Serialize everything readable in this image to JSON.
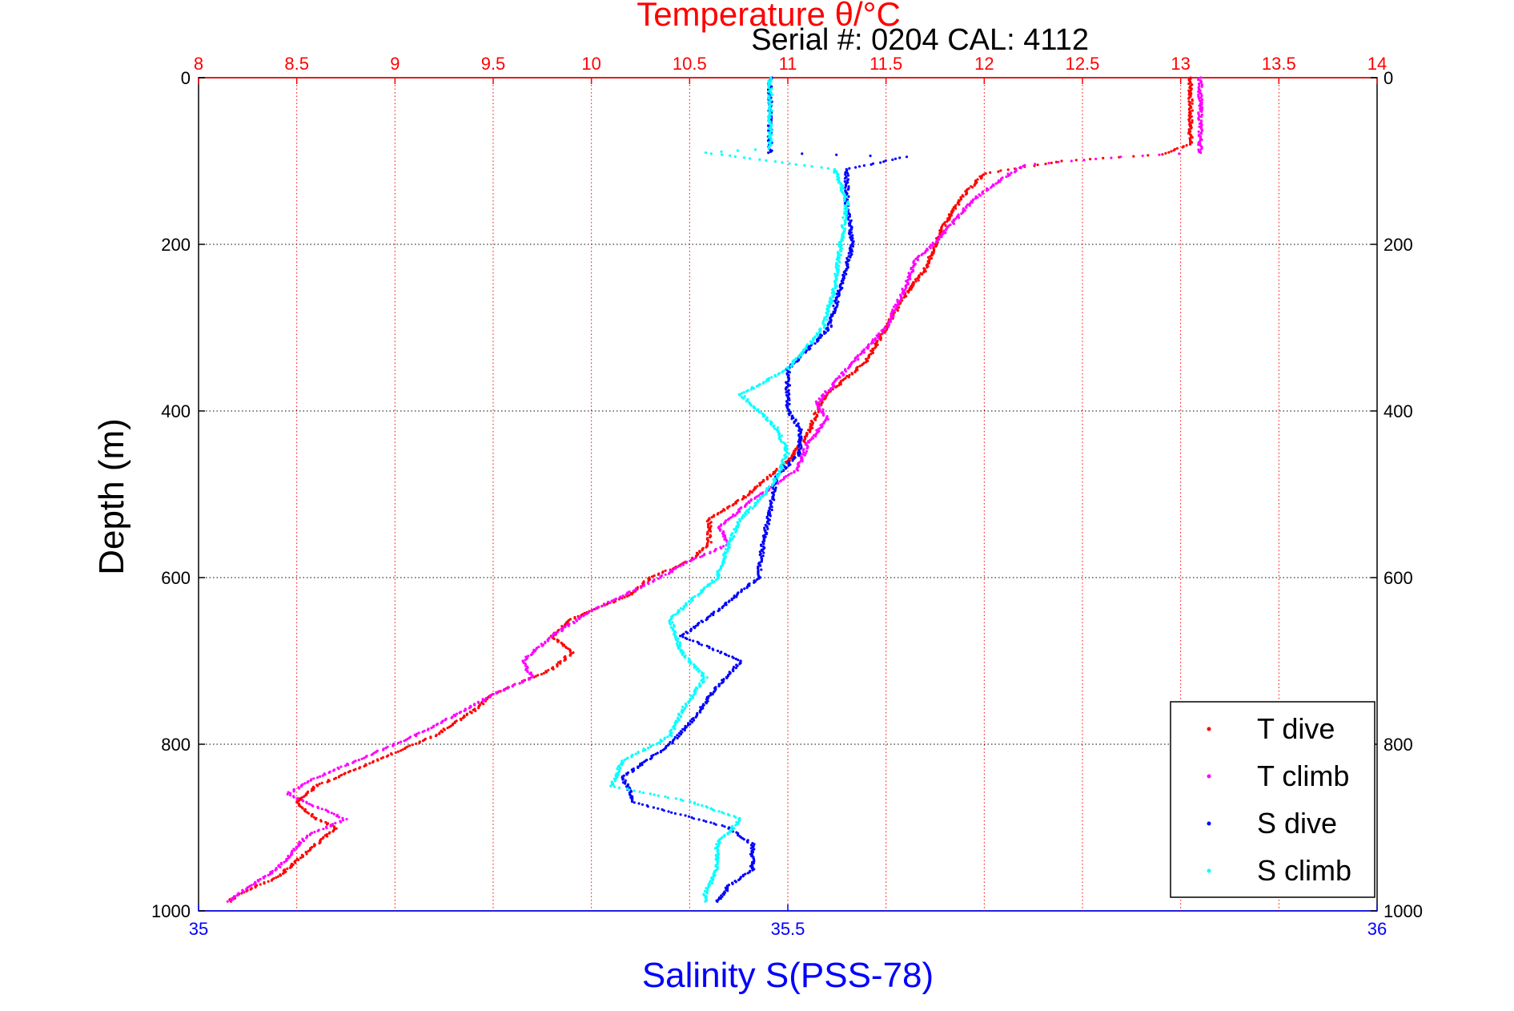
{
  "chart_data": {
    "type": "scatter",
    "title": "Temperature θ/°C",
    "subtitle": "Serial #: 0204  CAL: 4112",
    "xlabel_top": "Temperature θ/°C",
    "xlabel": "Salinity S(PSS-78)",
    "ylabel": "Depth (m)",
    "x_top_ticks": [
      "8",
      "8.5",
      "9",
      "9.5",
      "10",
      "10.5",
      "11",
      "11.5",
      "12",
      "12.5",
      "13",
      "13.5",
      "14"
    ],
    "x_bottom_ticks": [
      "35",
      "35.5",
      "36"
    ],
    "y_ticks": [
      "0",
      "200",
      "400",
      "600",
      "800",
      "1000"
    ],
    "xlim_top": [
      8,
      14
    ],
    "xlim_bottom": [
      35,
      36
    ],
    "ylim": [
      0,
      1000
    ],
    "y_reversed": true,
    "grid": true,
    "legend_position": "bottom-right",
    "colors": {
      "t_dive": "#ff0000",
      "t_climb": "#ff00ff",
      "s_dive": "#0000ff",
      "s_climb": "#00ffff",
      "top_axis": "#ff0000",
      "bottom_axis": "#0000ff"
    },
    "series": [
      {
        "name": "T dive",
        "axis": "top",
        "color": "#ff0000",
        "points": [
          [
            13.05,
            0
          ],
          [
            13.05,
            80
          ],
          [
            12.9,
            92
          ],
          [
            12.4,
            100
          ],
          [
            12.0,
            115
          ],
          [
            11.9,
            140
          ],
          [
            11.8,
            175
          ],
          [
            11.75,
            200
          ],
          [
            11.7,
            230
          ],
          [
            11.6,
            260
          ],
          [
            11.5,
            300
          ],
          [
            11.4,
            340
          ],
          [
            11.2,
            380
          ],
          [
            11.15,
            400
          ],
          [
            11.1,
            430
          ],
          [
            11.0,
            460
          ],
          [
            10.8,
            500
          ],
          [
            10.6,
            530
          ],
          [
            10.6,
            560
          ],
          [
            10.5,
            580
          ],
          [
            10.3,
            600
          ],
          [
            10.2,
            620
          ],
          [
            9.9,
            650
          ],
          [
            9.8,
            670
          ],
          [
            9.9,
            690
          ],
          [
            9.8,
            710
          ],
          [
            9.5,
            740
          ],
          [
            9.4,
            760
          ],
          [
            9.2,
            790
          ],
          [
            9.0,
            810
          ],
          [
            8.8,
            830
          ],
          [
            8.6,
            850
          ],
          [
            8.5,
            870
          ],
          [
            8.6,
            890
          ],
          [
            8.7,
            900
          ],
          [
            8.6,
            920
          ],
          [
            8.5,
            940
          ],
          [
            8.4,
            960
          ],
          [
            8.2,
            980
          ],
          [
            8.15,
            990
          ]
        ]
      },
      {
        "name": "T climb",
        "axis": "top",
        "color": "#ff00ff",
        "points": [
          [
            13.1,
            0
          ],
          [
            13.1,
            90
          ],
          [
            12.7,
            95
          ],
          [
            12.2,
            105
          ],
          [
            12.1,
            120
          ],
          [
            11.95,
            145
          ],
          [
            11.8,
            185
          ],
          [
            11.65,
            220
          ],
          [
            11.6,
            250
          ],
          [
            11.5,
            300
          ],
          [
            11.3,
            350
          ],
          [
            11.15,
            390
          ],
          [
            11.2,
            410
          ],
          [
            11.1,
            440
          ],
          [
            11.05,
            470
          ],
          [
            10.8,
            510
          ],
          [
            10.65,
            540
          ],
          [
            10.7,
            560
          ],
          [
            10.5,
            580
          ],
          [
            10.35,
            600
          ],
          [
            10.0,
            640
          ],
          [
            9.8,
            670
          ],
          [
            9.65,
            700
          ],
          [
            9.7,
            720
          ],
          [
            9.5,
            740
          ],
          [
            9.35,
            760
          ],
          [
            9.1,
            790
          ],
          [
            8.8,
            820
          ],
          [
            8.6,
            840
          ],
          [
            8.45,
            860
          ],
          [
            8.65,
            880
          ],
          [
            8.75,
            890
          ],
          [
            8.55,
            910
          ],
          [
            8.4,
            950
          ],
          [
            8.2,
            980
          ],
          [
            8.15,
            990
          ]
        ]
      },
      {
        "name": "S dive",
        "axis": "bottom",
        "color": "#0000ff",
        "points": [
          [
            35.485,
            0
          ],
          [
            35.485,
            90
          ],
          [
            35.6,
            95
          ],
          [
            35.55,
            110
          ],
          [
            35.55,
            150
          ],
          [
            35.555,
            200
          ],
          [
            35.545,
            250
          ],
          [
            35.535,
            300
          ],
          [
            35.5,
            350
          ],
          [
            35.5,
            380
          ],
          [
            35.5,
            400
          ],
          [
            35.51,
            420
          ],
          [
            35.51,
            450
          ],
          [
            35.49,
            480
          ],
          [
            35.485,
            520
          ],
          [
            35.48,
            550
          ],
          [
            35.475,
            600
          ],
          [
            35.44,
            640
          ],
          [
            35.41,
            670
          ],
          [
            35.46,
            700
          ],
          [
            35.435,
            740
          ],
          [
            35.42,
            770
          ],
          [
            35.4,
            800
          ],
          [
            35.38,
            820
          ],
          [
            35.36,
            840
          ],
          [
            35.37,
            870
          ],
          [
            35.45,
            900
          ],
          [
            35.47,
            920
          ],
          [
            35.47,
            950
          ],
          [
            35.45,
            970
          ],
          [
            35.44,
            990
          ]
        ]
      },
      {
        "name": "S climb",
        "axis": "bottom",
        "color": "#00ffff",
        "points": [
          [
            35.485,
            0
          ],
          [
            35.485,
            85
          ],
          [
            35.43,
            90
          ],
          [
            35.54,
            110
          ],
          [
            35.55,
            150
          ],
          [
            35.545,
            200
          ],
          [
            35.54,
            250
          ],
          [
            35.53,
            300
          ],
          [
            35.5,
            350
          ],
          [
            35.46,
            380
          ],
          [
            35.49,
            420
          ],
          [
            35.5,
            450
          ],
          [
            35.49,
            480
          ],
          [
            35.48,
            500
          ],
          [
            35.46,
            530
          ],
          [
            35.45,
            560
          ],
          [
            35.44,
            600
          ],
          [
            35.4,
            650
          ],
          [
            35.41,
            690
          ],
          [
            35.43,
            720
          ],
          [
            35.41,
            760
          ],
          [
            35.4,
            790
          ],
          [
            35.36,
            820
          ],
          [
            35.35,
            850
          ],
          [
            35.42,
            870
          ],
          [
            35.46,
            890
          ],
          [
            35.44,
            920
          ],
          [
            35.44,
            950
          ],
          [
            35.43,
            980
          ],
          [
            35.43,
            990
          ]
        ]
      }
    ]
  }
}
